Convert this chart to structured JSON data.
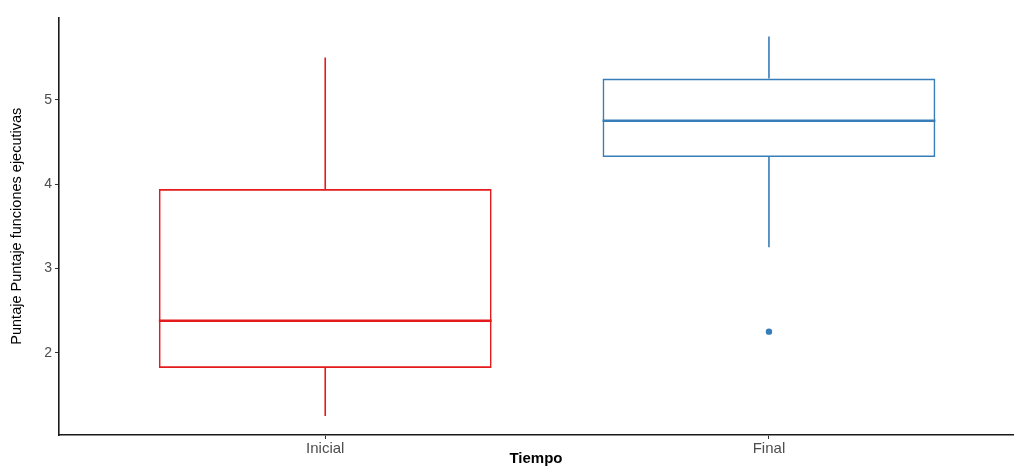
{
  "chart_data": {
    "type": "box",
    "categories": [
      "Inicial",
      "Final"
    ],
    "xlabel": "Tiempo",
    "ylabel": "Puntaje Puntaje funciones ejecutivas",
    "colors": [
      "#e41a1c",
      "#377eb8"
    ],
    "boxes": [
      {
        "low": 1.25,
        "q1": 1.82,
        "median": 2.38,
        "q3": 3.94,
        "high": 5.5
      },
      {
        "low": 3.25,
        "q1": 4.32,
        "median": 4.75,
        "q3": 5.25,
        "high": 5.75,
        "outliers": [
          2.25
        ]
      }
    ],
    "ylim": [
      1.025,
      5.975
    ],
    "yticks": [
      2,
      3,
      4,
      5
    ],
    "grid": false,
    "legend": false
  }
}
